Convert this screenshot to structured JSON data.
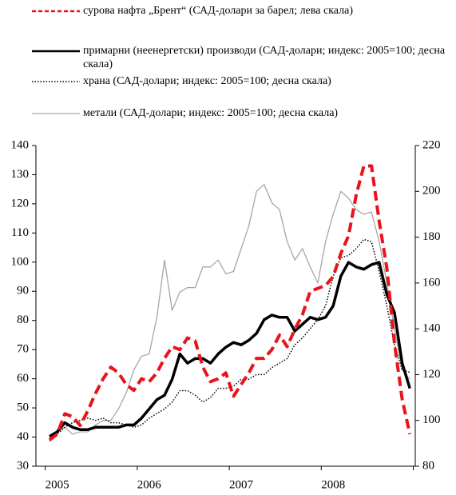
{
  "chart_data": {
    "type": "line",
    "categories": [
      null,
      "2005",
      null,
      null,
      null,
      null,
      null,
      null,
      null,
      null,
      null,
      null,
      null,
      "2006",
      null,
      null,
      null,
      null,
      null,
      null,
      null,
      null,
      null,
      null,
      null,
      "2007",
      null,
      null,
      null,
      null,
      null,
      null,
      null,
      null,
      null,
      null,
      null,
      "2008",
      null,
      null,
      null,
      null,
      null,
      null,
      null,
      null,
      null,
      null
    ],
    "series": [
      {
        "name": "сурова нафта „Брент“ (САД-долари за барел; лева скала)",
        "color": "#e8141b",
        "dash": "dashed",
        "axis": "y",
        "values": [
          39,
          41,
          48,
          47,
          44,
          49,
          55,
          60,
          64,
          62,
          58,
          56,
          60,
          59,
          62,
          67,
          71,
          70,
          74,
          73,
          64,
          59,
          60,
          62,
          54,
          58,
          62,
          67,
          67,
          70,
          75,
          71,
          77,
          82,
          90,
          91,
          92,
          95,
          103,
          109,
          123,
          133,
          133,
          114,
          98,
          72,
          53,
          41
        ]
      },
      {
        "name": "примарни (неенергетски) производи (САД-долари; индекс: 2005=100; десна скала)",
        "color": "#000000",
        "dash": "solid",
        "axis": "y2",
        "values": [
          93,
          95,
          99,
          97,
          96,
          96,
          97,
          97,
          97,
          97,
          98,
          98,
          101,
          105,
          109,
          111,
          118,
          129,
          125,
          127,
          127,
          125,
          129,
          132,
          134,
          133,
          135,
          138,
          144,
          146,
          145,
          145,
          139,
          142,
          145,
          144,
          145,
          150,
          163,
          169,
          167,
          166,
          168,
          169,
          155,
          147,
          125,
          114
        ]
      },
      {
        "name": "храна (САД-долари; индекс: 2005=100; десна скала)",
        "color": "#000000",
        "dash": "dotted",
        "axis": "y2",
        "values": [
          91,
          94,
          97,
          99,
          100,
          101,
          100,
          101,
          99,
          99,
          98,
          97,
          98,
          101,
          103,
          105,
          108,
          113,
          113,
          111,
          108,
          110,
          114,
          114,
          115,
          118,
          118,
          120,
          120,
          123,
          125,
          127,
          133,
          136,
          140,
          144,
          150,
          163,
          171,
          172,
          175,
          179,
          178,
          165,
          150,
          133,
          122,
          121
        ]
      },
      {
        "name": "метали (САД-долари; индекс: 2005=100; десна скала)",
        "color": "#a6a6a6",
        "dash": "thin",
        "axis": "y2",
        "values": [
          92,
          95,
          97,
          94,
          95,
          95,
          98,
          100,
          100,
          105,
          112,
          122,
          128,
          129,
          145,
          170,
          148,
          156,
          158,
          158,
          167,
          167,
          170,
          164,
          165,
          175,
          185,
          200,
          203,
          195,
          192,
          178,
          170,
          175,
          167,
          160,
          178,
          190,
          200,
          197,
          192,
          190,
          191,
          178,
          160,
          140,
          122,
          118
        ]
      }
    ],
    "ylim": [
      30,
      140
    ],
    "yticks": [
      30,
      40,
      50,
      60,
      70,
      80,
      90,
      100,
      110,
      120,
      130,
      140
    ],
    "y2lim": [
      80,
      220
    ],
    "y2ticks": [
      80,
      100,
      120,
      140,
      160,
      180,
      200,
      220
    ]
  }
}
